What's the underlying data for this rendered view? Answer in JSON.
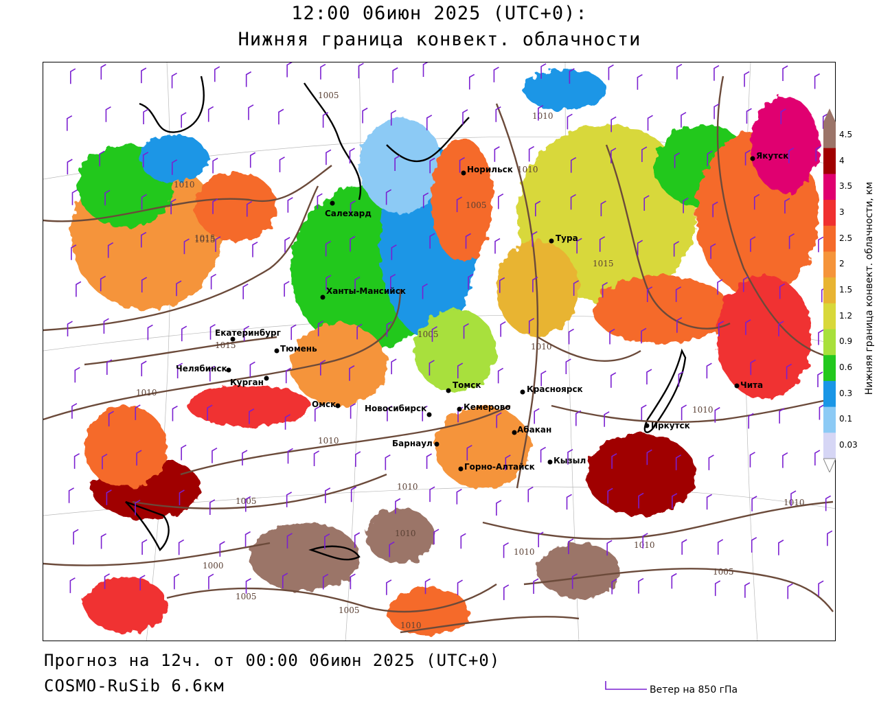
{
  "title": {
    "line1": "12:00 06июн 2025 (UTC+0):",
    "line2": "Нижняя граница конвект. облачности"
  },
  "footer": {
    "forecast": "Прогноз на 12ч. от 00:00 06июн 2025 (UTC+0)",
    "model": "COSMO-RuSib 6.6км",
    "wind_label": "Ветер на 850 гПа"
  },
  "legend": {
    "label": "Нижняя граница конвект. облачности, км",
    "ticks": [
      "4.5",
      "4",
      "3.5",
      "3",
      "2.5",
      "2",
      "1.5",
      "1.2",
      "0.9",
      "0.6",
      "0.3",
      "0.1",
      "0.03"
    ],
    "colors": [
      "#9b7468",
      "#a00000",
      "#e0006f",
      "#f03030",
      "#f56a2a",
      "#f5943a",
      "#e8b432",
      "#d8d83a",
      "#a8e03c",
      "#22c81e",
      "#1a96e6",
      "#8ccaf5",
      "#d6d6f5"
    ]
  },
  "cities": [
    {
      "name": "Норильск"
    },
    {
      "name": "Якутск"
    },
    {
      "name": "Салехард"
    },
    {
      "name": "Тура"
    },
    {
      "name": "Ханты-Мансийск"
    },
    {
      "name": "Екатеринбург"
    },
    {
      "name": "Тюмень"
    },
    {
      "name": "Челябинск"
    },
    {
      "name": "Курган"
    },
    {
      "name": "Омск"
    },
    {
      "name": "Новосибирск"
    },
    {
      "name": "Томск"
    },
    {
      "name": "Кемерово"
    },
    {
      "name": "Красноярск"
    },
    {
      "name": "Абакан"
    },
    {
      "name": "Барнаул"
    },
    {
      "name": "Горно-Алтайск"
    },
    {
      "name": "Кызыл"
    },
    {
      "name": "Иркутск"
    },
    {
      "name": "Чита"
    }
  ],
  "isobar_labels": [
    "1005",
    "1015",
    "1010",
    "1010",
    "1015",
    "1010",
    "1015",
    "1005",
    "1005",
    "1015",
    "1010",
    "1010",
    "1010",
    "1010",
    "1005",
    "1000",
    "1005",
    "1010",
    "1010",
    "1010",
    "1010",
    "1005",
    "1010",
    "1010",
    "1005"
  ],
  "colors": {
    "isobar": "#6b4a3a",
    "coast": "#000000",
    "wind_barb": "#7a1fd0"
  }
}
